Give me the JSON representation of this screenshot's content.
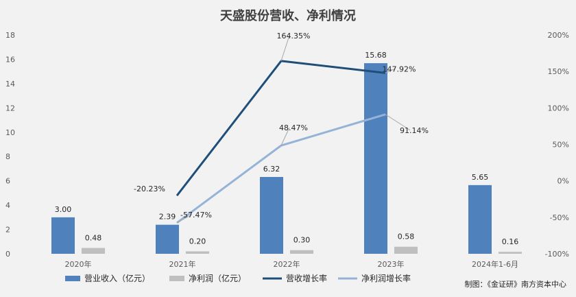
{
  "chart_data": {
    "type": "bar",
    "title": "天盛股份营收、净利情况",
    "categories": [
      "2020年",
      "2021年",
      "2022年",
      "2023年",
      "2024年1-6月"
    ],
    "series": [
      {
        "name": "营业收入（亿元）",
        "type": "bar",
        "axis": "left",
        "color": "#4f81bd",
        "values": [
          3.0,
          2.39,
          6.32,
          15.68,
          5.65
        ],
        "labels": [
          "3.00",
          "2.39",
          "6.32",
          "15.68",
          "5.65"
        ]
      },
      {
        "name": "净利润（亿元）",
        "type": "bar",
        "axis": "left",
        "color": "#bfbfbf",
        "values": [
          0.48,
          0.2,
          0.3,
          0.58,
          0.16
        ],
        "labels": [
          "0.48",
          "0.20",
          "0.30",
          "0.58",
          "0.16"
        ]
      },
      {
        "name": "营收增长率",
        "type": "line",
        "axis": "right",
        "color": "#1f4e79",
        "values": [
          null,
          -20.23,
          164.35,
          147.92,
          null
        ],
        "labels": [
          null,
          "-20.23%",
          "164.35%",
          "147.92%",
          null
        ]
      },
      {
        "name": "净利润增长率",
        "type": "line",
        "axis": "right",
        "color": "#95b3d7",
        "values": [
          null,
          -57.47,
          48.47,
          91.14,
          null
        ],
        "labels": [
          null,
          "-57.47%",
          "48.47%",
          "91.14%",
          null
        ]
      }
    ],
    "y_left": {
      "min": 0,
      "max": 18,
      "step": 2
    },
    "y_right": {
      "min": -100,
      "max": 200,
      "step": 50,
      "unit": "%"
    },
    "legend_position": "bottom",
    "grid": false
  },
  "credit": "制图：《金证研》南方资本中心"
}
